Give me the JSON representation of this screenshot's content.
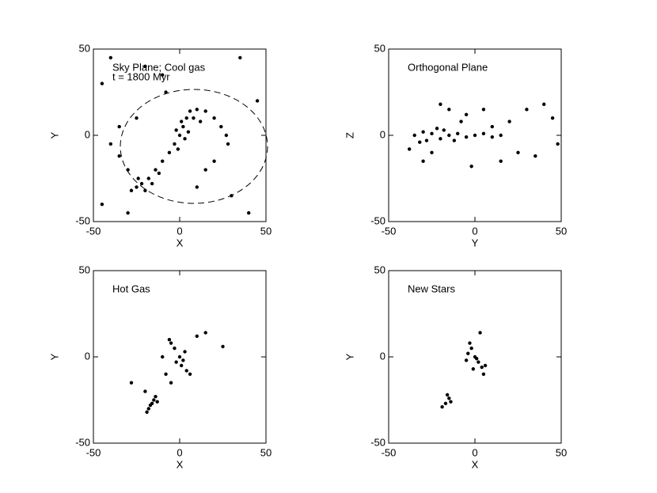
{
  "chart_data": [
    {
      "type": "scatter",
      "annotations": [
        "Sky Plane; Cool gas",
        "t = 1800 Myr"
      ],
      "x_label": "X",
      "y_label": "Y",
      "color": "#000000",
      "xlim": [
        -50,
        50
      ],
      "ylim": [
        -50,
        50
      ],
      "xticks": [
        -50,
        0,
        50
      ],
      "yticks": [
        -50,
        0,
        50
      ],
      "x": [
        0,
        2,
        -2,
        4,
        6,
        10,
        15,
        20,
        24,
        27,
        28,
        3,
        -3,
        -6,
        -10,
        -14,
        -18,
        -22,
        -25,
        -28,
        -20,
        -16,
        -24,
        -12,
        1,
        -1,
        5,
        8,
        12,
        -30,
        -35,
        -40,
        -45,
        -40,
        -20,
        -10,
        10,
        30,
        40,
        45,
        -45,
        -35,
        -25,
        15,
        20,
        -8,
        35,
        -30
      ],
      "values": [
        0,
        5,
        3,
        10,
        14,
        15,
        14,
        10,
        5,
        0,
        -5,
        -2,
        -5,
        -10,
        -15,
        -20,
        -25,
        -28,
        -30,
        -32,
        -32,
        -28,
        -25,
        -22,
        8,
        -8,
        2,
        10,
        8,
        -20,
        -12,
        -5,
        30,
        45,
        40,
        35,
        -30,
        -35,
        -45,
        20,
        -40,
        5,
        10,
        -20,
        -15,
        25,
        45,
        -45
      ]
    },
    {
      "type": "scatter",
      "annotations": [
        "Orthogonal Plane"
      ],
      "x_label": "Y",
      "y_label": "Z",
      "color": "#000000",
      "xlim": [
        -50,
        50
      ],
      "ylim": [
        -50,
        50
      ],
      "xticks": [
        -50,
        0,
        50
      ],
      "yticks": [
        -50,
        0,
        50
      ],
      "x": [
        -35,
        -30,
        -28,
        -25,
        -20,
        -15,
        -10,
        -5,
        0,
        5,
        10,
        15,
        -32,
        -22,
        -12,
        -18,
        -8,
        -5,
        -15,
        -25,
        -30,
        10,
        20,
        30,
        40,
        45,
        48,
        -38,
        25,
        35,
        -2,
        5,
        -20,
        15
      ],
      "values": [
        0,
        2,
        -3,
        1,
        -2,
        0,
        1,
        -1,
        0,
        1,
        -1,
        0,
        -4,
        4,
        -3,
        3,
        8,
        12,
        15,
        -10,
        -15,
        5,
        8,
        15,
        18,
        10,
        -5,
        -8,
        -10,
        -12,
        -18,
        15,
        18,
        -15
      ]
    },
    {
      "type": "scatter",
      "annotations": [
        "Hot Gas"
      ],
      "x_label": "X",
      "y_label": "Y",
      "color": "#000000",
      "xlim": [
        -50,
        50
      ],
      "ylim": [
        -50,
        50
      ],
      "xticks": [
        -50,
        0,
        50
      ],
      "yticks": [
        -50,
        0,
        50
      ],
      "x": [
        0,
        2,
        -3,
        -5,
        3,
        1,
        4,
        -2,
        -15,
        -17,
        -18,
        -16,
        -14,
        -19,
        -13,
        -8,
        -5,
        -20,
        10,
        15,
        25,
        -28,
        -10,
        6,
        -6
      ],
      "values": [
        0,
        -2,
        5,
        8,
        3,
        -5,
        -8,
        -3,
        -25,
        -28,
        -30,
        -27,
        -23,
        -32,
        -26,
        -10,
        -15,
        -20,
        12,
        14,
        6,
        -15,
        0,
        -10,
        10
      ]
    },
    {
      "type": "scatter",
      "annotations": [
        "New Stars"
      ],
      "x_label": "X",
      "y_label": "Y",
      "color": "#000000",
      "xlim": [
        -50,
        50
      ],
      "ylim": [
        -50,
        50
      ],
      "xticks": [
        -50,
        0,
        50
      ],
      "yticks": [
        -50,
        0,
        50
      ],
      "x": [
        0,
        2,
        -2,
        4,
        5,
        -3,
        3,
        -4,
        1,
        6,
        -1,
        -15,
        -17,
        -19,
        -14,
        -16,
        -5
      ],
      "values": [
        0,
        -3,
        5,
        -6,
        -10,
        8,
        14,
        2,
        -1,
        -5,
        -7,
        -24,
        -27,
        -29,
        -26,
        -22,
        -2
      ]
    }
  ]
}
